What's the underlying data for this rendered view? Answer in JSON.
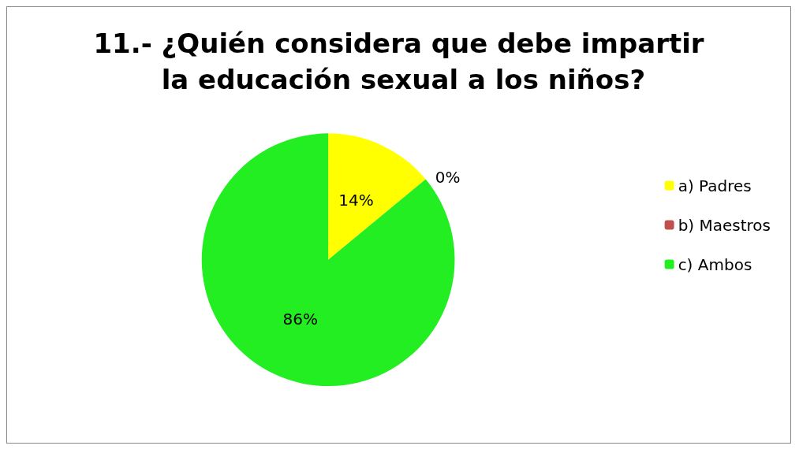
{
  "chart_data": {
    "type": "pie",
    "title": "11.- ¿Quién considera que debe impartir la educación sexual a los niños?",
    "categories": [
      "a) Padres",
      "b) Maestros",
      "c) Ambos"
    ],
    "values": [
      14,
      0,
      86
    ],
    "colors": [
      "#ffff00",
      "#c0504d",
      "#22ee22"
    ],
    "value_labels": [
      "14%",
      "0%",
      "86%"
    ],
    "legend": "right"
  }
}
